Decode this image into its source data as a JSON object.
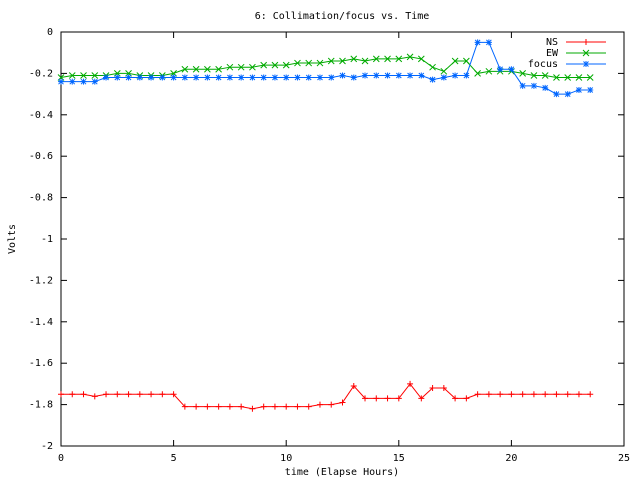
{
  "chart_data": {
    "type": "line",
    "title": "6: Collimation/focus vs. Time",
    "xlabel": "time (Elapse Hours)",
    "ylabel": "Volts",
    "x": [
      0,
      0.5,
      1,
      1.5,
      2,
      2.5,
      3,
      3.5,
      4,
      4.5,
      5,
      5.5,
      6,
      6.5,
      7,
      7.5,
      8,
      8.5,
      9,
      9.5,
      10,
      10.5,
      11,
      11.5,
      12,
      12.5,
      13,
      13.5,
      14,
      14.5,
      15,
      15.5,
      16,
      16.5,
      17,
      17.5,
      18,
      18.5,
      19,
      19.5,
      20,
      20.5,
      21,
      21.5,
      22,
      22.5,
      23,
      23.5
    ],
    "series": [
      {
        "name": "NS",
        "color": "#ff0000",
        "marker": "plus",
        "values": [
          -1.75,
          -1.75,
          -1.75,
          -1.76,
          -1.75,
          -1.75,
          -1.75,
          -1.75,
          -1.75,
          -1.75,
          -1.75,
          -1.81,
          -1.81,
          -1.81,
          -1.81,
          -1.81,
          -1.81,
          -1.82,
          -1.81,
          -1.81,
          -1.81,
          -1.81,
          -1.81,
          -1.8,
          -1.8,
          -1.79,
          -1.71,
          -1.77,
          -1.77,
          -1.77,
          -1.77,
          -1.7,
          -1.77,
          -1.72,
          -1.72,
          -1.77,
          -1.77,
          -1.75,
          -1.75,
          -1.75,
          -1.75,
          -1.75,
          -1.75,
          -1.75,
          -1.75,
          -1.75,
          -1.75,
          -1.75
        ]
      },
      {
        "name": "EW",
        "color": "#00aa00",
        "marker": "cross",
        "values": [
          -0.22,
          -0.21,
          -0.21,
          -0.21,
          -0.21,
          -0.2,
          -0.2,
          -0.21,
          -0.21,
          -0.21,
          -0.2,
          -0.18,
          -0.18,
          -0.18,
          -0.18,
          -0.17,
          -0.17,
          -0.17,
          -0.16,
          -0.16,
          -0.16,
          -0.15,
          -0.15,
          -0.15,
          -0.14,
          -0.14,
          -0.13,
          -0.14,
          -0.13,
          -0.13,
          -0.13,
          -0.12,
          -0.13,
          -0.17,
          -0.19,
          -0.14,
          -0.14,
          -0.2,
          -0.19,
          -0.19,
          -0.19,
          -0.2,
          -0.21,
          -0.21,
          -0.22,
          -0.22,
          -0.22,
          -0.22
        ]
      },
      {
        "name": "focus",
        "color": "#0066ff",
        "marker": "star",
        "values": [
          -0.24,
          -0.24,
          -0.24,
          -0.24,
          -0.22,
          -0.22,
          -0.22,
          -0.22,
          -0.22,
          -0.22,
          -0.22,
          -0.22,
          -0.22,
          -0.22,
          -0.22,
          -0.22,
          -0.22,
          -0.22,
          -0.22,
          -0.22,
          -0.22,
          -0.22,
          -0.22,
          -0.22,
          -0.22,
          -0.21,
          -0.22,
          -0.21,
          -0.21,
          -0.21,
          -0.21,
          -0.21,
          -0.21,
          -0.23,
          -0.22,
          -0.21,
          -0.21,
          -0.05,
          -0.05,
          -0.18,
          -0.18,
          -0.26,
          -0.26,
          -0.27,
          -0.3,
          -0.3,
          -0.28,
          -0.28
        ]
      }
    ],
    "xlim": [
      0,
      25
    ],
    "xticks": [
      0,
      5,
      10,
      15,
      20,
      25
    ],
    "ylim": [
      -2,
      0
    ],
    "yticks": [
      -2,
      -1.8,
      -1.6,
      -1.4,
      -1.2,
      -1,
      -0.8,
      -0.6,
      -0.4,
      -0.2,
      0
    ],
    "legend": "top-right",
    "grid": false
  }
}
